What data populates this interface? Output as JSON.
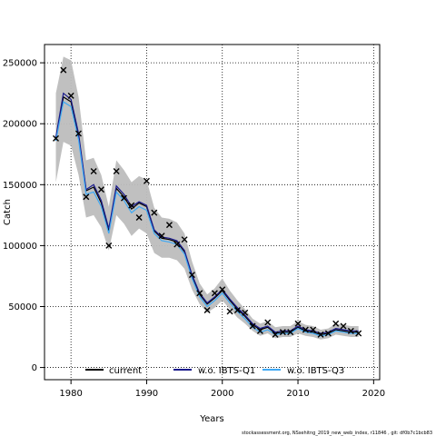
{
  "chart_data": {
    "type": "line",
    "title": "",
    "xlabel": "Years",
    "ylabel": "Catch",
    "xlim": [
      1976.5,
      2020.8
    ],
    "ylim": [
      -10000,
      265000
    ],
    "x_ticks": [
      1980,
      1990,
      2000,
      2010,
      2020
    ],
    "x_tick_labels": [
      "1980",
      "1990",
      "2000",
      "2010",
      "2020"
    ],
    "y_ticks": [
      0,
      50000,
      100000,
      150000,
      200000,
      250000
    ],
    "y_tick_labels": [
      "0",
      "50000",
      "100000",
      "150000",
      "200000",
      "250000"
    ],
    "grid": true,
    "legend_position": "bottom",
    "colors": {
      "current": "#000000",
      "wo_q1": "#1a1a8c",
      "wo_q3": "#3fa9f5",
      "band": "#bdbdbd",
      "observed": "#000000"
    },
    "years": [
      1978,
      1979,
      1980,
      1981,
      1982,
      1983,
      1984,
      1985,
      1986,
      1987,
      1988,
      1989,
      1990,
      1991,
      1992,
      1993,
      1994,
      1995,
      1996,
      1997,
      1998,
      1999,
      2000,
      2001,
      2002,
      2003,
      2004,
      2005,
      2006,
      2007,
      2008,
      2009,
      2010,
      2011,
      2012,
      2013,
      2014,
      2015,
      2016,
      2017,
      2018
    ],
    "series": [
      {
        "name": "current",
        "values": [
          188000,
          222000,
          218000,
          190000,
          145000,
          148000,
          135000,
          112000,
          147000,
          140000,
          130000,
          135000,
          132000,
          112000,
          106000,
          105000,
          103000,
          95000,
          75000,
          60000,
          52000,
          57000,
          63000,
          55000,
          48000,
          42000,
          35000,
          31000,
          33000,
          28000,
          29000,
          29000,
          33000,
          30000,
          29000,
          27000,
          28000,
          31000,
          30000,
          29000,
          29000
        ]
      },
      {
        "name": "w.o. IBTS-Q1",
        "values": [
          189000,
          225000,
          220000,
          192000,
          146000,
          150000,
          137000,
          114000,
          149000,
          142000,
          132000,
          136000,
          133000,
          113000,
          107000,
          106000,
          104000,
          96000,
          76000,
          61000,
          53000,
          58000,
          64000,
          56000,
          49000,
          43000,
          36000,
          32000,
          34000,
          29000,
          30000,
          30000,
          34000,
          31000,
          30000,
          28000,
          29000,
          32000,
          31000,
          30000,
          30000
        ]
      },
      {
        "name": "w.o. IBTS-Q3",
        "values": [
          186000,
          218000,
          214000,
          187000,
          142000,
          144000,
          132000,
          110000,
          144000,
          137000,
          127000,
          132000,
          129000,
          110000,
          104000,
          103000,
          101000,
          93000,
          73000,
          58000,
          50000,
          55000,
          61000,
          53000,
          46000,
          40000,
          33000,
          29000,
          31000,
          27000,
          28000,
          28000,
          32000,
          29000,
          28000,
          26000,
          27000,
          30000,
          29000,
          28000,
          28000
        ]
      }
    ],
    "band": {
      "lower": [
        152000,
        185000,
        182000,
        158000,
        123000,
        125000,
        115000,
        96000,
        125000,
        118000,
        108000,
        114000,
        110000,
        94000,
        90000,
        90000,
        88000,
        81000,
        64000,
        52000,
        45000,
        49000,
        55000,
        48000,
        41000,
        36000,
        30000,
        26000,
        28000,
        24000,
        25000,
        25000,
        28000,
        26000,
        25000,
        23000,
        24000,
        27000,
        26000,
        25000,
        25000
      ],
      "upper": [
        225000,
        255000,
        252000,
        222000,
        170000,
        172000,
        158000,
        132000,
        170000,
        162000,
        152000,
        157000,
        154000,
        131000,
        123000,
        122000,
        119000,
        110000,
        87000,
        69000,
        60000,
        65000,
        73000,
        63000,
        55000,
        48000,
        40000,
        36000,
        38000,
        33000,
        34000,
        34000,
        38000,
        35000,
        34000,
        31000,
        32000,
        36000,
        35000,
        34000,
        34000
      ]
    },
    "observed": {
      "x": [
        1978,
        1979,
        1980,
        1981,
        1982,
        1983,
        1984,
        1985,
        1986,
        1987,
        1988,
        1989,
        1990,
        1991,
        1992,
        1993,
        1994,
        1995,
        1996,
        1997,
        1998,
        1999,
        2000,
        2001,
        2002,
        2003,
        2004,
        2005,
        2006,
        2007,
        2008,
        2009,
        2010,
        2011,
        2012,
        2013,
        2014,
        2015,
        2016,
        2017,
        2018
      ],
      "y": [
        188000,
        244000,
        223000,
        192000,
        140000,
        161000,
        146000,
        100000,
        161000,
        139000,
        133000,
        123000,
        153000,
        127000,
        108000,
        117000,
        101000,
        105000,
        76000,
        61000,
        47000,
        61000,
        64000,
        46000,
        47000,
        45000,
        34000,
        30000,
        37000,
        27000,
        29000,
        29000,
        36000,
        31000,
        31000,
        27000,
        28000,
        36000,
        34000,
        30000,
        28000
      ]
    }
  },
  "footer": {
    "text": "stockassessment.org, NSsehitng_2019_new_web_index, r11846 , git: df0b7c1bcb83"
  }
}
